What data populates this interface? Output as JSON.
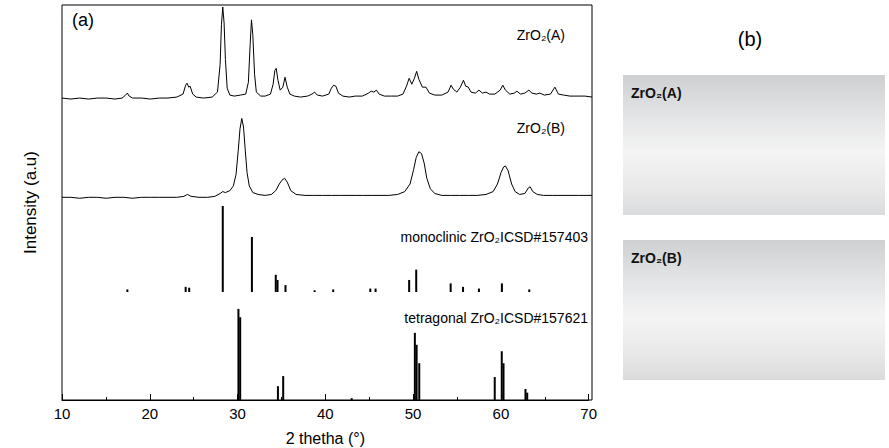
{
  "chart_data": {
    "type": "line",
    "title": "(a)",
    "x_label": "2 thetha (°)",
    "y_label": "Intensity (a.u)",
    "xlim": [
      10,
      70
    ],
    "xticks": [
      10,
      20,
      30,
      40,
      50,
      60,
      70
    ],
    "tick_labels": "x",
    "grid": false,
    "series": [
      {
        "name": "ZrO₂(A)",
        "type": "line",
        "color": "#000000",
        "ylim": [
          0,
          100
        ],
        "x": [
          10,
          11,
          12,
          13,
          14,
          15,
          16,
          16.8,
          17.2,
          17.4,
          17.6,
          18,
          19,
          20,
          21,
          22,
          23,
          23.7,
          24.0,
          24.15,
          24.35,
          24.5,
          24.8,
          25.2,
          26,
          27,
          27.6,
          27.9,
          28.05,
          28.2,
          28.35,
          28.5,
          28.7,
          29,
          29.5,
          30.2,
          30.8,
          31.1,
          31.3,
          31.45,
          31.6,
          31.8,
          32,
          32.5,
          33,
          33.6,
          33.9,
          34.1,
          34.25,
          34.45,
          34.7,
          35.0,
          35.25,
          35.5,
          35.8,
          36.3,
          37,
          37.8,
          38.3,
          38.6,
          38.9,
          39.5,
          40.2,
          40.5,
          40.75,
          41.0,
          41.3,
          41.8,
          42.5,
          43.2,
          44,
          44.7,
          45.0,
          45.3,
          45.6,
          45.9,
          46.5,
          47.3,
          48,
          48.6,
          49.0,
          49.3,
          49.6,
          49.9,
          50.15,
          50.4,
          50.8,
          51.2,
          51.6,
          52.2,
          53,
          53.7,
          54.05,
          54.3,
          54.7,
          55.1,
          55.45,
          55.7,
          56.0,
          56.3,
          56.8,
          57.2,
          57.6,
          58.0,
          58.4,
          59,
          59.6,
          59.9,
          60.2,
          60.7,
          61.2,
          61.5,
          61.9,
          62.4,
          62.85,
          63.2,
          63.7,
          64.1,
          64.6,
          65.3,
          65.8,
          66.2,
          66.8,
          67.5,
          68.3,
          69.2,
          70
        ],
        "values": [
          6,
          5,
          6,
          5,
          6,
          6,
          5,
          6,
          9,
          11,
          8,
          6,
          6,
          5,
          6,
          6,
          7,
          10,
          19,
          21,
          17,
          18,
          10,
          7,
          6,
          7,
          12,
          40,
          80,
          98,
          82,
          45,
          16,
          9,
          8,
          9,
          10,
          22,
          60,
          85,
          70,
          30,
          12,
          8,
          8,
          10,
          20,
          34,
          36,
          24,
          14,
          17,
          27,
          17,
          10,
          8,
          7,
          8,
          10,
          12,
          9,
          8,
          10,
          16,
          19,
          18,
          11,
          8,
          7,
          8,
          8,
          11,
          13,
          12,
          14,
          10,
          8,
          8,
          8,
          10,
          18,
          26,
          20,
          26,
          33,
          25,
          17,
          17,
          11,
          9,
          9,
          12,
          19,
          15,
          12,
          17,
          24,
          18,
          17,
          12,
          11,
          14,
          11,
          12,
          10,
          10,
          14,
          19,
          14,
          10,
          11,
          13,
          10,
          11,
          14,
          11,
          10,
          11,
          9,
          10,
          17,
          10,
          9,
          8,
          8,
          8,
          7
        ]
      },
      {
        "name": "ZrO₂(B)",
        "type": "line",
        "color": "#000000",
        "ylim": [
          0,
          100
        ],
        "x": [
          10,
          11,
          12,
          13,
          14,
          15,
          16,
          17,
          18,
          19,
          20,
          21,
          22,
          23,
          23.8,
          24.2,
          24.6,
          25.5,
          26.5,
          27.3,
          27.9,
          28.2,
          28.5,
          29.0,
          29.4,
          29.7,
          29.95,
          30.15,
          30.35,
          30.55,
          30.75,
          30.95,
          31.2,
          31.6,
          32.2,
          33,
          33.7,
          34.2,
          34.6,
          34.9,
          35.2,
          35.5,
          35.9,
          36.5,
          37.5,
          38.5,
          39.5,
          40.5,
          41.5,
          42.5,
          43.3,
          44,
          45,
          46,
          47,
          48,
          48.8,
          49.4,
          49.8,
          50.1,
          50.4,
          50.7,
          51.0,
          51.3,
          51.7,
          52.2,
          53,
          54,
          55,
          56,
          57,
          58,
          58.8,
          59.3,
          59.7,
          60.0,
          60.2,
          60.5,
          60.9,
          61.3,
          61.8,
          62.4,
          62.8,
          63.0,
          63.3,
          63.8,
          64.5,
          65.5,
          66.5,
          67.5,
          68.5,
          70
        ],
        "values": [
          6,
          6,
          5,
          6,
          6,
          5,
          6,
          6,
          5,
          6,
          6,
          6,
          6,
          6,
          7,
          9,
          7,
          6,
          6,
          7,
          10,
          12,
          11,
          13,
          18,
          30,
          55,
          78,
          89,
          80,
          55,
          32,
          18,
          11,
          9,
          8,
          9,
          13,
          20,
          24,
          26,
          22,
          13,
          9,
          8,
          8,
          8,
          8,
          8,
          8,
          8,
          8,
          8,
          8,
          8,
          9,
          12,
          20,
          35,
          48,
          54,
          52,
          42,
          26,
          15,
          10,
          8,
          8,
          8,
          8,
          8,
          9,
          12,
          20,
          32,
          38,
          39,
          34,
          20,
          12,
          9,
          10,
          16,
          17,
          12,
          9,
          8,
          8,
          8,
          8,
          8,
          8
        ]
      },
      {
        "name": "monoclinic ZrO₂ICSD#157403",
        "type": "bar",
        "color": "#000000",
        "ylim": [
          0,
          100
        ],
        "x": [
          17.4,
          24.0,
          24.4,
          28.2,
          31.5,
          34.2,
          34.4,
          35.3,
          38.6,
          40.7,
          44.9,
          45.5,
          49.3,
          50.1,
          54.0,
          55.4,
          57.2,
          59.8,
          62.9
        ],
        "values": [
          3,
          6,
          5,
          100,
          64,
          20,
          14,
          8,
          2,
          3,
          4,
          4,
          14,
          26,
          10,
          6,
          4,
          10,
          3
        ]
      },
      {
        "name": "tetragonal ZrO₂ICSD#157621",
        "type": "bar",
        "color": "#000000",
        "ylim": [
          0,
          100
        ],
        "x": [
          30.1,
          30.3,
          34.6,
          35.2,
          43.0,
          50.2,
          50.4,
          50.7,
          59.3,
          60.1,
          60.3,
          62.8,
          63.0
        ],
        "values": [
          99,
          90,
          15,
          26,
          2,
          73,
          60,
          40,
          25,
          53,
          40,
          12,
          8
        ]
      }
    ]
  },
  "photo_panel": {
    "title": "(b)",
    "photos": [
      {
        "label": "ZrO₂(A)"
      },
      {
        "label": "ZrO₂(B)"
      }
    ]
  }
}
